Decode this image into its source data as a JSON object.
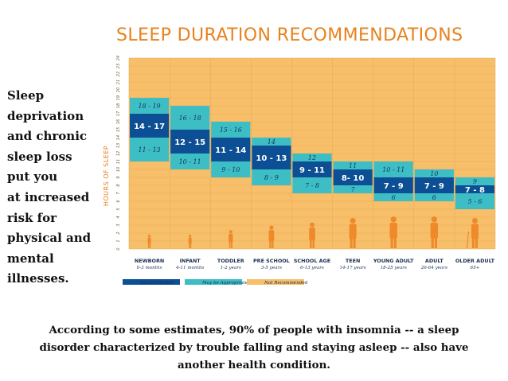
{
  "side_text": [
    "Sleep",
    "deprivation",
    "and chronic",
    "sleep loss",
    "put you",
    "at increased",
    "risk for",
    "physical and",
    "mental",
    "illnesses."
  ],
  "footer_lines": [
    "According to some estimates, 90% of people with insomnia -- a sleep",
    "disorder characterized by trouble falling and staying asleep -- also have",
    "another health condition."
  ],
  "colors": {
    "recommended": "#0d4f94",
    "may_be_appropriate": "#3dbdc4",
    "not_recommended": "#f7bf6a",
    "title": "#e8821e",
    "silhouette": "#ee8a2a"
  },
  "chart_data": {
    "type": "bar",
    "title": "SLEEP DURATION RECOMMENDATIONS",
    "ylabel": "HOURS OF SLEEP",
    "ylim": [
      0,
      24
    ],
    "y_ticks": [
      0,
      1,
      2,
      3,
      4,
      5,
      6,
      7,
      8,
      9,
      10,
      11,
      12,
      13,
      14,
      15,
      16,
      17,
      18,
      19,
      20,
      21,
      22,
      23,
      24
    ],
    "grid": true,
    "legend": [
      "Recommended",
      "May be Appropriate",
      "Not Recommended"
    ],
    "legend_position": "bottom",
    "categories": [
      {
        "name": "NEWBORN",
        "age": "0-3 months",
        "recommended": [
          14,
          17
        ],
        "recommended_label": "14 - 17",
        "appropriate": [
          11,
          19
        ],
        "upper_label": "18 - 19",
        "lower_label": "11 - 13"
      },
      {
        "name": "INFANT",
        "age": "4-11 months",
        "recommended": [
          12,
          15
        ],
        "recommended_label": "12 - 15",
        "appropriate": [
          10,
          18
        ],
        "upper_label": "16 - 18",
        "lower_label": "10 - 11"
      },
      {
        "name": "TODDLER",
        "age": "1-2 years",
        "recommended": [
          11,
          14
        ],
        "recommended_label": "11 - 14",
        "appropriate": [
          9,
          16
        ],
        "upper_label": "15 - 16",
        "lower_label": "9 - 10"
      },
      {
        "name": "PRE SCHOOL",
        "age": "3-5 years",
        "recommended": [
          10,
          13
        ],
        "recommended_label": "10 - 13",
        "appropriate": [
          8,
          14
        ],
        "upper_label": "14",
        "lower_label": "8 - 9"
      },
      {
        "name": "SCHOOL AGE",
        "age": "6-13 years",
        "recommended": [
          9,
          11
        ],
        "recommended_label": "9 - 11",
        "appropriate": [
          7,
          12
        ],
        "upper_label": "12",
        "lower_label": "7 - 8"
      },
      {
        "name": "TEEN",
        "age": "14-17 years",
        "recommended": [
          8,
          10
        ],
        "recommended_label": "8- 10",
        "appropriate": [
          7,
          11
        ],
        "upper_label": "11",
        "lower_label": "7"
      },
      {
        "name": "YOUNG ADULT",
        "age": "18-25 years",
        "recommended": [
          7,
          9
        ],
        "recommended_label": "7 - 9",
        "appropriate": [
          6,
          11
        ],
        "upper_label": "10 - 11",
        "lower_label": "6"
      },
      {
        "name": "ADULT",
        "age": "26-64 years",
        "recommended": [
          7,
          9
        ],
        "recommended_label": "7 - 9",
        "appropriate": [
          6,
          10
        ],
        "upper_label": "10",
        "lower_label": "6"
      },
      {
        "name": "OLDER ADULT",
        "age": "65+",
        "recommended": [
          7,
          8
        ],
        "recommended_label": "7 - 8",
        "appropriate": [
          5,
          9
        ],
        "upper_label": "9",
        "lower_label": "5 - 6"
      }
    ]
  }
}
